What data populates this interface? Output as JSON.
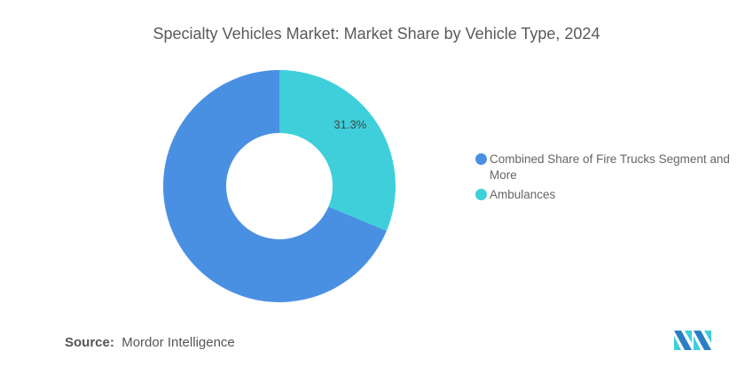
{
  "chart_data": {
    "type": "pie",
    "donut": true,
    "title": "Specialty Vehicles Market: Market Share by Vehicle Type, 2024",
    "categories": [
      "Combined Share of Fire Trucks Segment and More",
      "Ambulances"
    ],
    "values": [
      68.7,
      31.3
    ],
    "colors": [
      "#4a90e2",
      "#3ecfdb"
    ],
    "data_labels": [
      "",
      "31.3%"
    ],
    "legend_position": "right"
  },
  "source": {
    "label": "Source:",
    "value": "Mordor Intelligence"
  },
  "logo": {
    "text": "Mordor Intelligence"
  }
}
